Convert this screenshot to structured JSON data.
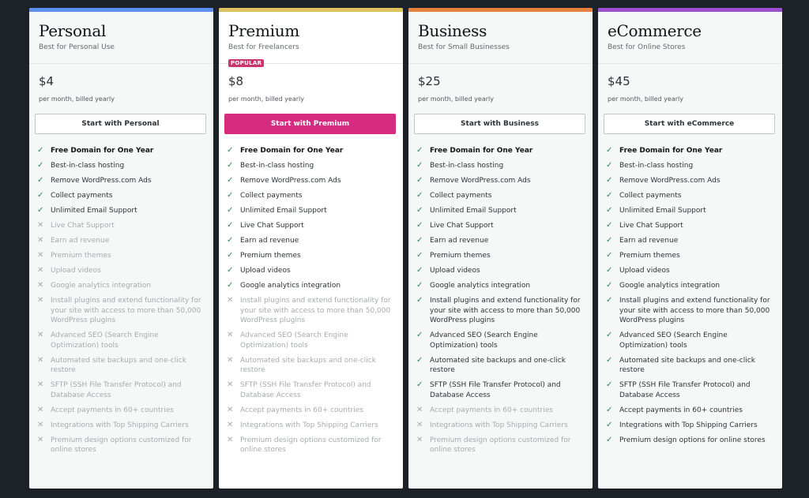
{
  "plans": [
    {
      "id": "personal",
      "name": "Personal",
      "tagline": "Best for Personal Use",
      "badge": "",
      "price": "$4",
      "period": "per month, billed yearly",
      "cta": "Start with Personal",
      "cta_primary": false,
      "accent": "#5b8ff0",
      "features": [
        {
          "text": "Free Domain for One Year",
          "included": true
        },
        {
          "text": "Best-in-class hosting",
          "included": true
        },
        {
          "text": "Remove WordPress.com Ads",
          "included": true
        },
        {
          "text": "Collect payments",
          "included": true
        },
        {
          "text": "Unlimited Email Support",
          "included": true
        },
        {
          "text": "Live Chat Support",
          "included": false
        },
        {
          "text": "Earn ad revenue",
          "included": false
        },
        {
          "text": "Premium themes",
          "included": false
        },
        {
          "text": "Upload videos",
          "included": false
        },
        {
          "text": "Google analytics integration",
          "included": false
        },
        {
          "text": "Install plugins and extend functionality for your site with access to more than 50,000 WordPress plugins",
          "included": false
        },
        {
          "text": "Advanced SEO (Search Engine Optimization) tools",
          "included": false
        },
        {
          "text": "Automated site backups and one-click restore",
          "included": false
        },
        {
          "text": "SFTP (SSH File Transfer Protocol) and Database Access",
          "included": false
        },
        {
          "text": "Accept payments in 60+ countries",
          "included": false
        },
        {
          "text": "Integrations with Top Shipping Carriers",
          "included": false
        },
        {
          "text": "Premium design options customized for online stores",
          "included": false
        }
      ]
    },
    {
      "id": "premium",
      "name": "Premium",
      "tagline": "Best for Freelancers",
      "badge": "POPULAR",
      "price": "$8",
      "period": "per month, billed yearly",
      "cta": "Start with Premium",
      "cta_primary": true,
      "accent": "#e0c25c",
      "features": [
        {
          "text": "Free Domain for One Year",
          "included": true
        },
        {
          "text": "Best-in-class hosting",
          "included": true
        },
        {
          "text": "Remove WordPress.com Ads",
          "included": true
        },
        {
          "text": "Collect payments",
          "included": true
        },
        {
          "text": "Unlimited Email Support",
          "included": true
        },
        {
          "text": "Live Chat Support",
          "included": true
        },
        {
          "text": "Earn ad revenue",
          "included": true
        },
        {
          "text": "Premium themes",
          "included": true
        },
        {
          "text": "Upload videos",
          "included": true
        },
        {
          "text": "Google analytics integration",
          "included": true
        },
        {
          "text": "Install plugins and extend functionality for your site with access to more than 50,000 WordPress plugins",
          "included": false
        },
        {
          "text": "Advanced SEO (Search Engine Optimization) tools",
          "included": false
        },
        {
          "text": "Automated site backups and one-click restore",
          "included": false
        },
        {
          "text": "SFTP (SSH File Transfer Protocol) and Database Access",
          "included": false
        },
        {
          "text": "Accept payments in 60+ countries",
          "included": false
        },
        {
          "text": "Integrations with Top Shipping Carriers",
          "included": false
        },
        {
          "text": "Premium design options customized for online stores",
          "included": false
        }
      ]
    },
    {
      "id": "business",
      "name": "Business",
      "tagline": "Best for Small Businesses",
      "badge": "",
      "price": "$25",
      "period": "per month, billed yearly",
      "cta": "Start with Business",
      "cta_primary": false,
      "accent": "#e7813b",
      "features": [
        {
          "text": "Free Domain for One Year",
          "included": true
        },
        {
          "text": "Best-in-class hosting",
          "included": true
        },
        {
          "text": "Remove WordPress.com Ads",
          "included": true
        },
        {
          "text": "Collect payments",
          "included": true
        },
        {
          "text": "Unlimited Email Support",
          "included": true
        },
        {
          "text": "Live Chat Support",
          "included": true
        },
        {
          "text": "Earn ad revenue",
          "included": true
        },
        {
          "text": "Premium themes",
          "included": true
        },
        {
          "text": "Upload videos",
          "included": true
        },
        {
          "text": "Google analytics integration",
          "included": true
        },
        {
          "text": "Install plugins and extend functionality for your site with access to more than 50,000 WordPress plugins",
          "included": true
        },
        {
          "text": "Advanced SEO (Search Engine Optimization) tools",
          "included": true
        },
        {
          "text": "Automated site backups and one-click restore",
          "included": true
        },
        {
          "text": "SFTP (SSH File Transfer Protocol) and Database Access",
          "included": true
        },
        {
          "text": "Accept payments in 60+ countries",
          "included": false
        },
        {
          "text": "Integrations with Top Shipping Carriers",
          "included": false
        },
        {
          "text": "Premium design options customized for online stores",
          "included": false
        }
      ]
    },
    {
      "id": "ecommerce",
      "name": "eCommerce",
      "tagline": "Best for Online Stores",
      "badge": "",
      "price": "$45",
      "period": "per month, billed yearly",
      "cta": "Start with eCommerce",
      "cta_primary": false,
      "accent": "#9c4fcf",
      "features": [
        {
          "text": "Free Domain for One Year",
          "included": true
        },
        {
          "text": "Best-in-class hosting",
          "included": true
        },
        {
          "text": "Remove WordPress.com Ads",
          "included": true
        },
        {
          "text": "Collect payments",
          "included": true
        },
        {
          "text": "Unlimited Email Support",
          "included": true
        },
        {
          "text": "Live Chat Support",
          "included": true
        },
        {
          "text": "Earn ad revenue",
          "included": true
        },
        {
          "text": "Premium themes",
          "included": true
        },
        {
          "text": "Upload videos",
          "included": true
        },
        {
          "text": "Google analytics integration",
          "included": true
        },
        {
          "text": "Install plugins and extend functionality for your site with access to more than 50,000 WordPress plugins",
          "included": true
        },
        {
          "text": "Advanced SEO (Search Engine Optimization) tools",
          "included": true
        },
        {
          "text": "Automated site backups and one-click restore",
          "included": true
        },
        {
          "text": "SFTP (SSH File Transfer Protocol) and Database Access",
          "included": true
        },
        {
          "text": "Accept payments in 60+ countries",
          "included": true
        },
        {
          "text": "Integrations with Top Shipping Carriers",
          "included": true
        },
        {
          "text": "Premium design options for online stores",
          "included": true
        }
      ]
    }
  ],
  "icons": {
    "included": "check-icon",
    "excluded": "cross-icon"
  }
}
